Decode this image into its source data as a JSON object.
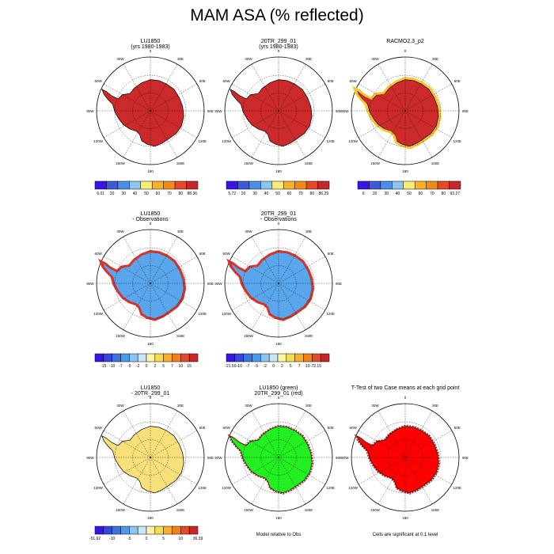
{
  "title": "MAM ASA (% reflected)",
  "longitude_labels": [
    "0",
    "30E",
    "60E",
    "90E",
    "120E",
    "150E",
    "180",
    "150W",
    "120W",
    "90W",
    "60W",
    "30W"
  ],
  "panels": [
    {
      "id": "p1",
      "title_lines": [
        "LU1850",
        "(yrs 1980-1983)"
      ],
      "fill": "abs",
      "colorbar": "cb1"
    },
    {
      "id": "p2",
      "title_lines": [
        "20TR_299_01",
        "(yrs 1980-1983)"
      ],
      "fill": "abs",
      "colorbar": "cb2"
    },
    {
      "id": "p3",
      "title_lines": [
        "RACMO2.3_p2"
      ],
      "fill": "obs",
      "colorbar": "cb3"
    },
    {
      "id": "p4",
      "title_lines": [
        "LU1850",
        "- Observations"
      ],
      "fill": "diff1",
      "colorbar": "cb4"
    },
    {
      "id": "p5",
      "title_lines": [
        "20TR_299_01",
        "- Observations"
      ],
      "fill": "diff2",
      "colorbar": "cb5"
    },
    {
      "id": "p6",
      "title_lines": [
        "LU1850",
        "- 20TR_299_01"
      ],
      "fill": "diff3",
      "colorbar": "cb6"
    },
    {
      "id": "p7",
      "title_lines": [
        "LU1850 (green)",
        "20TR_299_01 (red)"
      ],
      "fill": "green",
      "note": "Model relative to Obs"
    },
    {
      "id": "p8",
      "title_lines": [
        "T-Test of two Case means at each grid point"
      ],
      "fill": "red",
      "note": "Cells are significant at 0.1 level"
    }
  ],
  "colorbars": {
    "cb1": {
      "labels": [
        "6.01",
        "20",
        "30",
        "40",
        "50",
        "60",
        "70",
        "80",
        "88.36"
      ],
      "colors": [
        "#3a14e6",
        "#3e5ad8",
        "#4a8fe6",
        "#8cc6ee",
        "#f6ec7a",
        "#f7b028",
        "#f28a1a",
        "#e24a2a",
        "#c8262a"
      ]
    },
    "cb2": {
      "labels": [
        "5.72",
        "20",
        "30",
        "40",
        "50",
        "60",
        "70",
        "80",
        "86.29"
      ],
      "colors": [
        "#3a14e6",
        "#3e5ad8",
        "#4a8fe6",
        "#8cc6ee",
        "#f6ec7a",
        "#f7b028",
        "#f28a1a",
        "#e24a2a",
        "#c8262a"
      ]
    },
    "cb3": {
      "labels": [
        "6",
        "20",
        "30",
        "40",
        "50",
        "60",
        "70",
        "80",
        "93.27"
      ],
      "colors": [
        "#3a14e6",
        "#3e5ad8",
        "#4a8fe6",
        "#8cc6ee",
        "#f6ec7a",
        "#f7b028",
        "#f28a1a",
        "#e24a2a",
        "#c8262a"
      ]
    },
    "cb4": {
      "labels": [
        "",
        "-15",
        "-10",
        "-7",
        "-5",
        "-2",
        "0",
        "2",
        "5",
        "7",
        "10",
        "15",
        ""
      ],
      "colors": [
        "#3a14e6",
        "#3448dc",
        "#3e74e0",
        "#4a9ae8",
        "#8ac4f0",
        "#c8e6f4",
        "#fbf3a6",
        "#f6dc50",
        "#f7b028",
        "#f08018",
        "#e24a2a",
        "#c8262a"
      ]
    },
    "cb5": {
      "labels": [
        "-21.59",
        "-10",
        "-7",
        "-5",
        "-2",
        "0",
        "2",
        "5",
        "7",
        "10",
        "72.15"
      ],
      "colors": [
        "#3a14e6",
        "#3448dc",
        "#3e74e0",
        "#4a9ae8",
        "#8ac4f0",
        "#c8e6f4",
        "#fbf3a6",
        "#f6dc50",
        "#f7b028",
        "#f08018",
        "#e24a2a",
        "#c8262a"
      ]
    },
    "cb6": {
      "labels": [
        "-51.62",
        "",
        "-10",
        "",
        "-5",
        "",
        "0",
        "",
        "5",
        "",
        "10",
        "",
        "36.39"
      ],
      "colors": [
        "#3a14e6",
        "#3448dc",
        "#3e74e0",
        "#4a9ae8",
        "#8ac4f0",
        "#c8e6f4",
        "#fbf3a6",
        "#f6dc50",
        "#f7b028",
        "#f08018",
        "#e24a2a",
        "#c8262a"
      ]
    }
  },
  "colors": {
    "abs_fill": "#cc2a2a",
    "obs_fill": "#cc2a2a",
    "diff1_fill": "#5aa6ec",
    "diff2_fill": "#5aa6ec",
    "diff3_fill": "#f7e07a",
    "green_fill": "#22ee22",
    "red_fill": "#ff0000"
  },
  "chart_data": {
    "type": "map-panels",
    "rows": 3,
    "columns": 3,
    "projection": "south polar stereographic"
  }
}
